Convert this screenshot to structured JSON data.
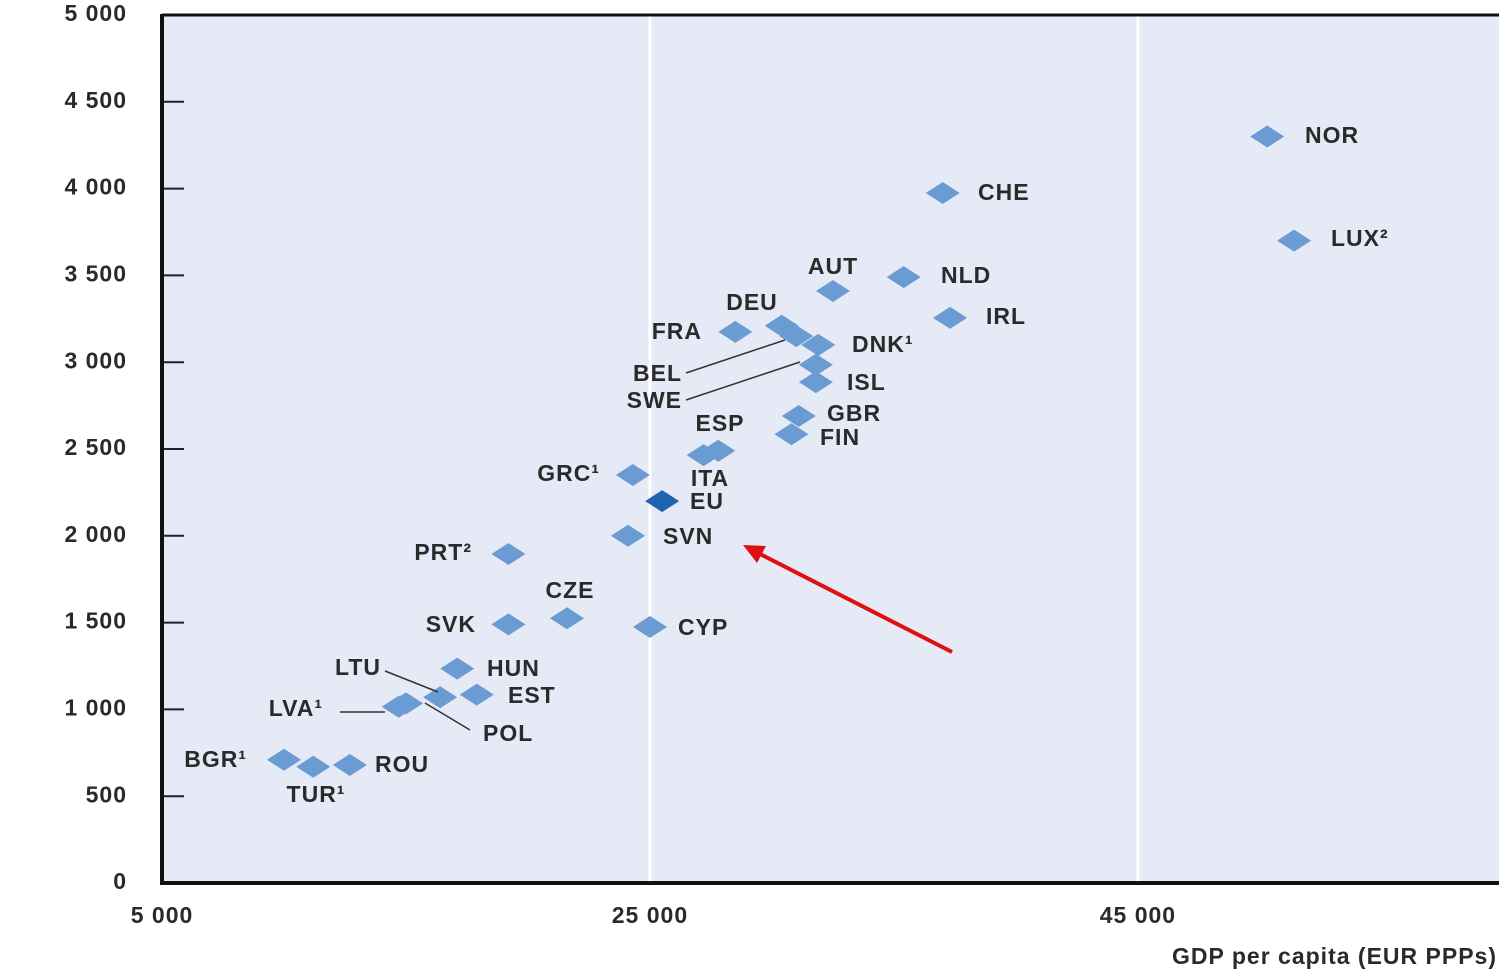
{
  "chart_data": {
    "type": "scatter",
    "x_label": "GDP per capita (EUR PPPs)",
    "xlim": [
      5000,
      59800
    ],
    "ylim": [
      0,
      5000
    ],
    "xticks": [
      {
        "value": 5000,
        "label": "5 000"
      },
      {
        "value": 25000,
        "label": "25 000"
      },
      {
        "value": 45000,
        "label": "45 000"
      }
    ],
    "yticks": [
      0,
      500,
      {
        "value": 1000,
        "label": "1 000"
      },
      {
        "value": 1500,
        "label": "1 500"
      },
      {
        "value": 2000,
        "label": "2 000"
      },
      {
        "value": 2500,
        "label": "2 500"
      },
      {
        "value": 3000,
        "label": "3 000"
      },
      {
        "value": 3500,
        "label": "3 500"
      },
      {
        "value": 4000,
        "label": "4 000"
      },
      {
        "value": 4500,
        "label": "4 500"
      },
      {
        "value": 5000,
        "label": "5 000"
      }
    ],
    "color": "#6a9bd2",
    "highlight_color": "#1f64ae",
    "labels": [
      "NOR",
      "LUX²",
      "CHE",
      "NLD",
      "AUT",
      "IRL",
      "DEU",
      "FRA",
      "BEL",
      "DNK¹",
      "SWE",
      "ISL",
      "GBR",
      "FIN",
      "ESP",
      "ITA",
      "GRC¹",
      "EU",
      "SVN",
      "PRT²",
      "CZE",
      "SVK",
      "CYP",
      "HUN",
      "EST",
      "POL",
      "LTU",
      "LVA¹",
      "BGR¹",
      "TUR¹",
      "ROU"
    ],
    "x": [
      50300,
      51400,
      37000,
      35400,
      32500,
      37300,
      30400,
      28500,
      31000,
      31900,
      31800,
      31800,
      31100,
      30800,
      27800,
      27200,
      24300,
      25500,
      24100,
      19200,
      21600,
      19200,
      25000,
      17100,
      17900,
      15000,
      16400,
      14700,
      10000,
      11200,
      12700
    ],
    "y": [
      4300,
      3700,
      3975,
      3490,
      3410,
      3255,
      3210,
      3175,
      3150,
      3100,
      2985,
      2885,
      2690,
      2585,
      2490,
      2465,
      2350,
      2200,
      2000,
      1895,
      1525,
      1490,
      1475,
      1235,
      1085,
      1035,
      1070,
      1015,
      710,
      670,
      680
    ],
    "highlight": "EU"
  }
}
